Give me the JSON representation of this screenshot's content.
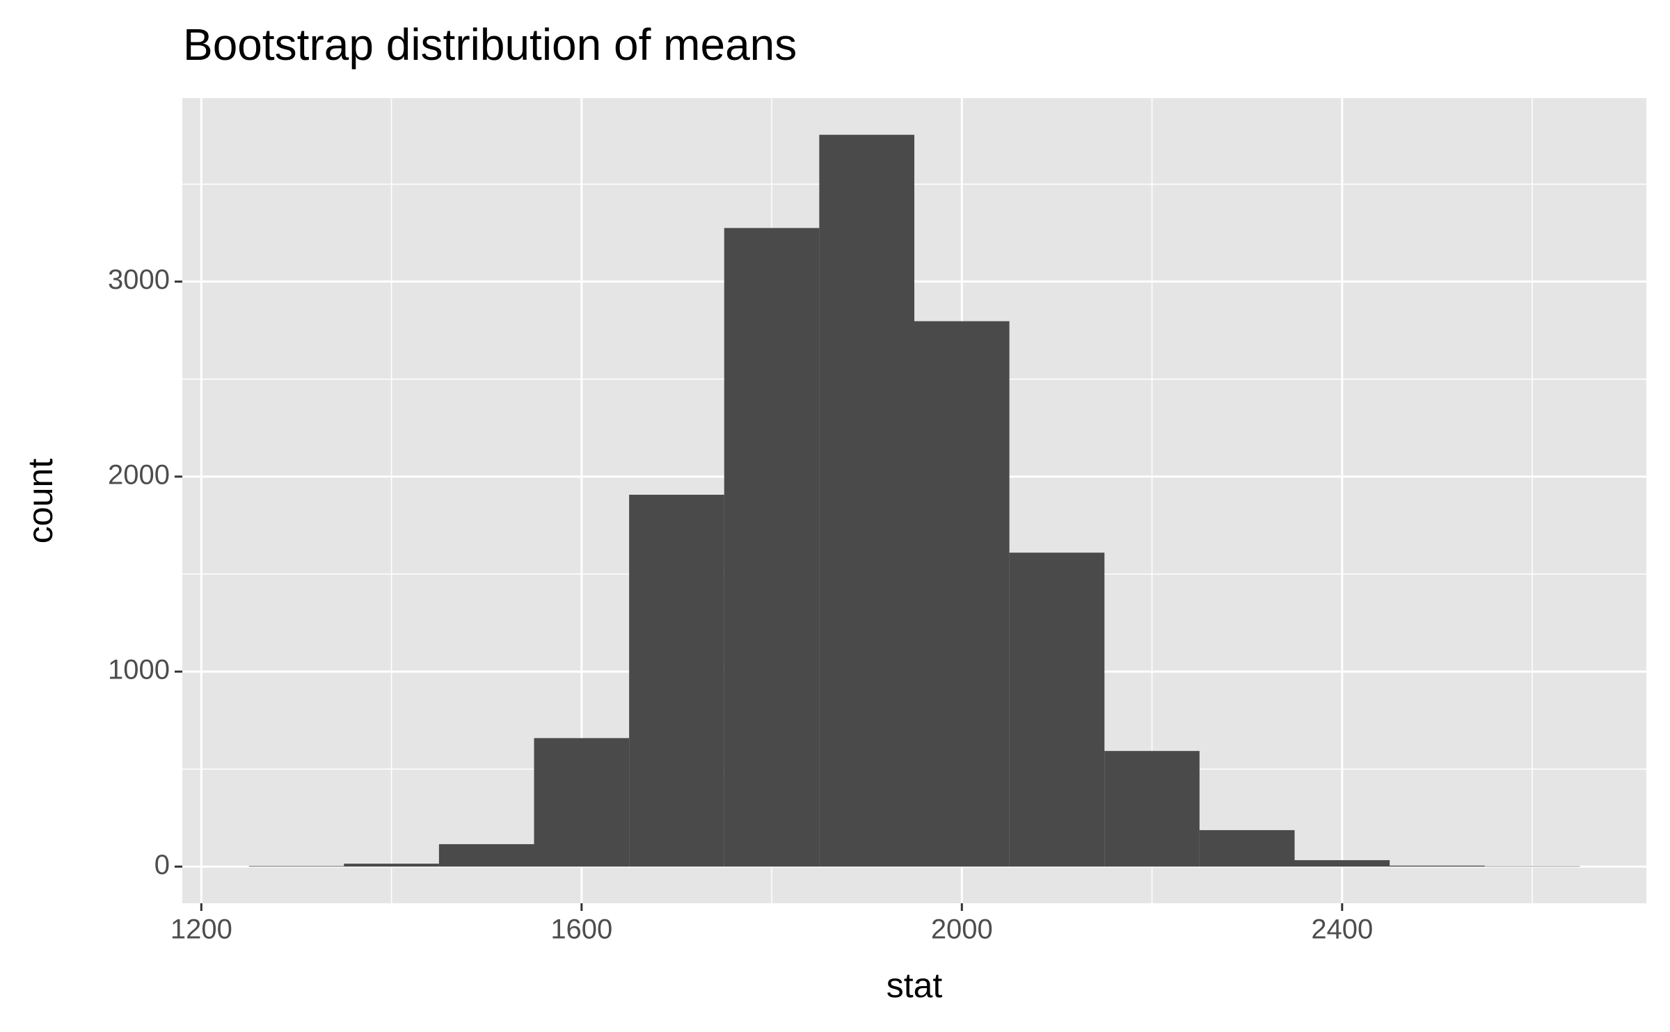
{
  "chart_data": {
    "type": "histogram",
    "title": "Bootstrap distribution of means",
    "x_label": "stat",
    "y_label": "count",
    "bins": [
      1250,
      1350,
      1450,
      1550,
      1650,
      1750,
      1850,
      1950,
      2050,
      2150,
      2250,
      2350,
      2450,
      2550,
      2650
    ],
    "values": [
      3,
      15,
      115,
      659,
      1907,
      3275,
      3753,
      2797,
      1610,
      593,
      187,
      33,
      5,
      2
    ],
    "color": "#4a4a4a",
    "xlim": [
      1180,
      2720
    ],
    "ylim": [
      -188,
      3941
    ],
    "xticks": [
      1200,
      1600,
      2000,
      2400
    ],
    "yticks": [
      0,
      1000,
      2000,
      3000
    ],
    "x_minor_grid": [
      1400,
      1800,
      2200,
      2600
    ],
    "y_minor_grid": [
      500,
      1500,
      2500,
      3500
    ],
    "grid": true,
    "panel_color": "#e5e5e5"
  }
}
